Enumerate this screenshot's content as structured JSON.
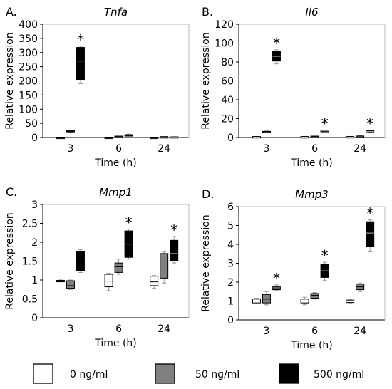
{
  "legend": [
    {
      "label": "0 ng/ml",
      "color": "#ffffff"
    },
    {
      "label": "50 ng/ml",
      "color": "#808080"
    },
    {
      "label": "500 ng/ml",
      "color": "#000000"
    }
  ],
  "chart_data": [
    {
      "type": "box",
      "letter": "A.",
      "title": "Tnfa",
      "xlabel": "Time (h)",
      "ylabel": "Relative expression",
      "ylim": [
        0,
        400
      ],
      "yticks": [
        0,
        50,
        100,
        150,
        200,
        250,
        300,
        350,
        400
      ],
      "categories": [
        "3",
        "6",
        "24"
      ],
      "series": [
        {
          "name": "0 ng/ml",
          "boxes": [
            [
              1,
              1,
              1,
              1,
              1
            ],
            [
              1,
              1,
              1,
              1,
              1
            ],
            [
              1,
              1,
              1,
              1,
              1
            ]
          ]
        },
        {
          "name": "50 ng/ml",
          "boxes": [
            [
              18,
              20,
              22,
              25,
              27
            ],
            [
              3,
              3,
              4,
              5,
              5
            ],
            [
              2,
              2,
              3,
              3,
              3
            ]
          ]
        },
        {
          "name": "500 ng/ml",
          "boxes": [
            [
              190,
              205,
              270,
              318,
              322
            ],
            [
              6,
              7,
              9,
              10,
              12
            ],
            [
              2,
              2,
              2,
              3,
              3
            ]
          ]
        }
      ],
      "significant": [
        [
          0,
          2
        ]
      ]
    },
    {
      "type": "box",
      "letter": "B.",
      "title": "Il6",
      "xlabel": "Time (h)",
      "ylabel": "Relative expression",
      "ylim": [
        0,
        120
      ],
      "yticks": [
        0,
        20,
        40,
        60,
        80,
        100,
        120
      ],
      "categories": [
        "3",
        "6",
        "24"
      ],
      "series": [
        {
          "name": "0 ng/ml",
          "boxes": [
            [
              1,
              1,
              1,
              1,
              1
            ],
            [
              0.8,
              1,
              1,
              1,
              1.2
            ],
            [
              0.8,
              1,
              1,
              1,
              1.2
            ]
          ]
        },
        {
          "name": "50 ng/ml",
          "boxes": [
            [
              5,
              5.5,
              6,
              6.5,
              7
            ],
            [
              1,
              1,
              1.2,
              1.5,
              1.5
            ],
            [
              1,
              1.2,
              1.5,
              1.6,
              2
            ]
          ]
        },
        {
          "name": "500 ng/ml",
          "boxes": [
            [
              78,
              81,
              86,
              91,
              93
            ],
            [
              6,
              6.5,
              7,
              7.5,
              8
            ],
            [
              5.5,
              6,
              6.5,
              7.5,
              8
            ]
          ]
        }
      ],
      "significant": [
        [
          0,
          2
        ],
        [
          1,
          2
        ],
        [
          2,
          2
        ]
      ]
    },
    {
      "type": "box",
      "letter": "C.",
      "title": "Mmp1",
      "xlabel": "Time (h)",
      "ylabel": "Relative expression",
      "ylim": [
        0,
        3
      ],
      "yticks": [
        0,
        0.5,
        1,
        1.5,
        2,
        2.5,
        3
      ],
      "ytick_labels": [
        "0",
        "0.5",
        "1",
        "1.5",
        "2",
        "2.5",
        "3"
      ],
      "categories": [
        "3",
        "6",
        "24"
      ],
      "series": [
        {
          "name": "0 ng/ml",
          "boxes": [
            [
              0.95,
              0.97,
              0.98,
              0.99,
              1.0
            ],
            [
              0.72,
              0.82,
              0.97,
              1.15,
              1.18
            ],
            [
              0.78,
              0.85,
              0.95,
              1.1,
              1.12
            ]
          ]
        },
        {
          "name": "50 ng/ml",
          "boxes": [
            [
              0.75,
              0.78,
              0.85,
              0.98,
              1.0
            ],
            [
              1.15,
              1.2,
              1.35,
              1.45,
              1.55
            ],
            [
              0.92,
              1.05,
              1.5,
              1.7,
              1.75
            ]
          ]
        },
        {
          "name": "500 ng/ml",
          "boxes": [
            [
              1.2,
              1.25,
              1.5,
              1.75,
              1.8
            ],
            [
              1.55,
              1.6,
              1.95,
              2.3,
              2.35
            ],
            [
              1.45,
              1.5,
              1.7,
              2.05,
              2.15
            ]
          ]
        }
      ],
      "significant": [
        [
          1,
          2
        ],
        [
          2,
          2
        ]
      ]
    },
    {
      "type": "box",
      "letter": "D.",
      "title": "Mmp3",
      "xlabel": "Time (h)",
      "ylabel": "Relative expression",
      "ylim": [
        0,
        6
      ],
      "yticks": [
        0,
        1,
        2,
        3,
        4,
        5,
        6
      ],
      "ytick_labels": [
        "0",
        "1",
        "2",
        "3",
        "4",
        "5",
        "6"
      ],
      "categories": [
        "3",
        "6",
        "24"
      ],
      "series": [
        {
          "name": "0 ng/ml",
          "boxes": [
            [
              0.85,
              0.9,
              1.0,
              1.1,
              1.15
            ],
            [
              0.8,
              0.9,
              1.0,
              1.1,
              1.2
            ],
            [
              0.9,
              0.92,
              1.0,
              1.05,
              1.1
            ]
          ]
        },
        {
          "name": "50 ng/ml",
          "boxes": [
            [
              0.8,
              0.9,
              1.1,
              1.35,
              1.5
            ],
            [
              1.1,
              1.15,
              1.3,
              1.4,
              1.45
            ],
            [
              1.5,
              1.6,
              1.75,
              1.9,
              1.95
            ]
          ]
        },
        {
          "name": "500 ng/ml",
          "boxes": [
            [
              1.55,
              1.6,
              1.7,
              1.75,
              1.85
            ],
            [
              2.1,
              2.25,
              2.6,
              2.95,
              3.05
            ],
            [
              3.6,
              3.9,
              4.6,
              5.2,
              5.3
            ]
          ]
        }
      ],
      "significant": [
        [
          0,
          2
        ],
        [
          1,
          2
        ],
        [
          2,
          2
        ]
      ]
    }
  ]
}
